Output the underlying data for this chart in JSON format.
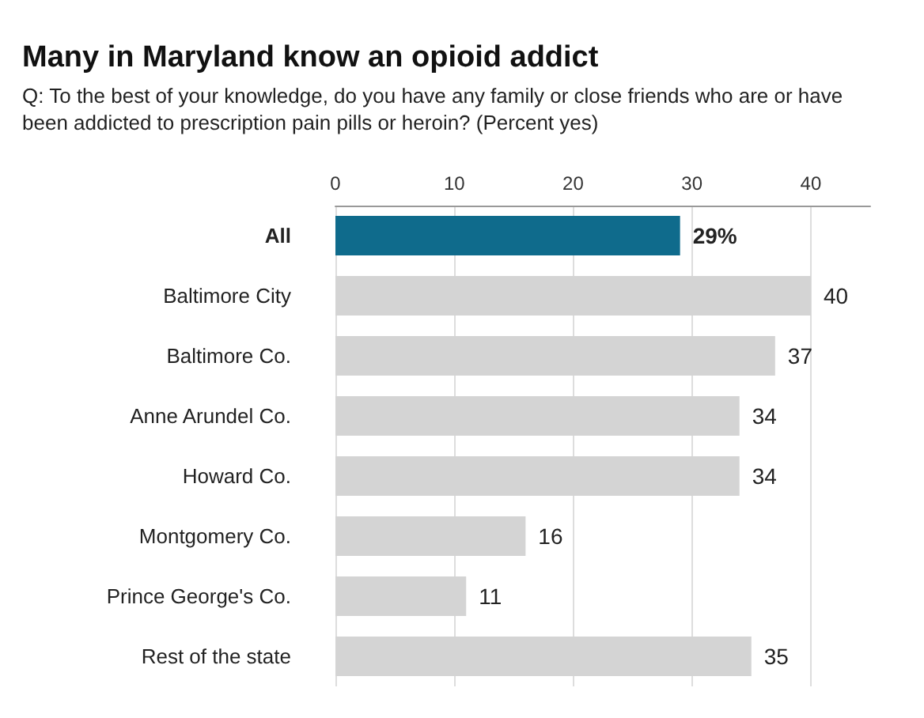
{
  "chart_data": {
    "type": "bar",
    "orientation": "horizontal",
    "title": "Many in Maryland know an opioid addict",
    "subtitle": "Q: To the best of your knowledge, do you have any family or close friends who are or have been addicted to prescription pain pills or heroin? (Percent yes)",
    "categories": [
      "All",
      "Baltimore City",
      "Baltimore Co.",
      "Anne Arundel Co.",
      "Howard Co.",
      "Montgomery Co.",
      "Prince George's Co.",
      "Rest of the state"
    ],
    "values": [
      29,
      40,
      37,
      34,
      34,
      16,
      11,
      35
    ],
    "colors": [
      "#0f6b8c",
      "#d4d4d4",
      "#d4d4d4",
      "#d4d4d4",
      "#d4d4d4",
      "#d4d4d4",
      "#d4d4d4",
      "#d4d4d4"
    ],
    "value_labels": [
      "29%",
      "40",
      "37",
      "34",
      "34",
      "16",
      "11",
      "35"
    ],
    "xlim": [
      0,
      45
    ],
    "xticks": [
      0,
      10,
      20,
      30,
      40
    ],
    "grid": "x"
  }
}
